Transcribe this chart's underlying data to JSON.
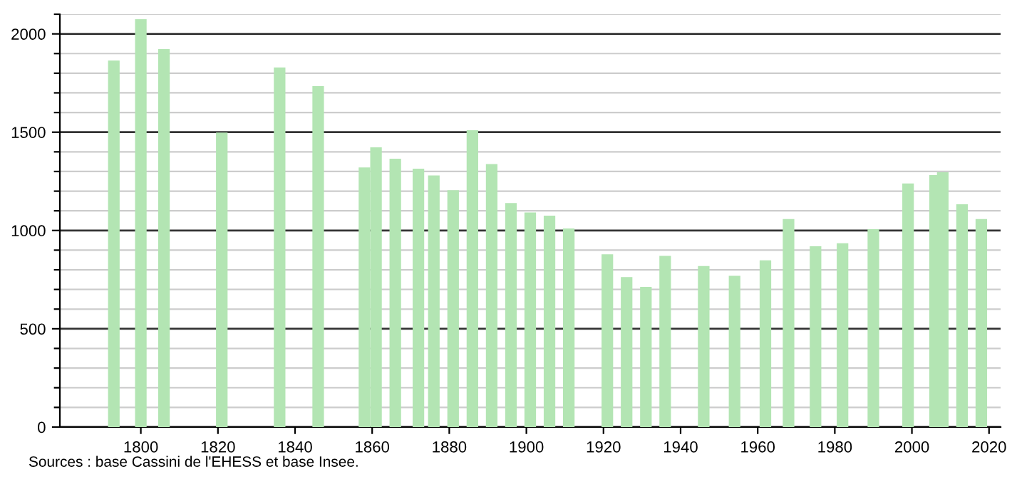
{
  "chart_data": {
    "type": "bar",
    "x": [
      1793,
      1800,
      1806,
      1821,
      1836,
      1846,
      1858,
      1861,
      1866,
      1872,
      1876,
      1881,
      1886,
      1891,
      1896,
      1901,
      1906,
      1911,
      1921,
      1926,
      1931,
      1936,
      1946,
      1954,
      1962,
      1968,
      1975,
      1982,
      1990,
      1999,
      2006,
      2008,
      2013,
      2018
    ],
    "values": [
      1865,
      2075,
      1923,
      1498,
      1829,
      1734,
      1321,
      1423,
      1365,
      1314,
      1280,
      1205,
      1510,
      1338,
      1140,
      1092,
      1075,
      1010,
      879,
      763,
      713,
      871,
      819,
      769,
      848,
      1058,
      920,
      935,
      1007,
      1239,
      1282,
      1296,
      1133,
      1058
    ],
    "color": "#b3e5b3",
    "xlim": [
      1779,
      2023
    ],
    "xticks": [
      1800,
      1820,
      1840,
      1860,
      1880,
      1900,
      1920,
      1940,
      1960,
      1980,
      2000,
      2020
    ],
    "ylim": [
      0,
      2100
    ],
    "yticks": [
      0,
      {
        "value": 100,
        "label": null
      },
      {
        "value": 200,
        "label": null
      },
      {
        "value": 300,
        "label": null
      },
      {
        "value": 400,
        "label": null
      },
      500,
      {
        "value": 600,
        "label": null
      },
      {
        "value": 700,
        "label": null
      },
      {
        "value": 800,
        "label": null
      },
      {
        "value": 900,
        "label": null
      },
      1000,
      {
        "value": 1100,
        "label": null
      },
      {
        "value": 1200,
        "label": null
      },
      {
        "value": 1300,
        "label": null
      },
      {
        "value": 1400,
        "label": null
      },
      1500,
      {
        "value": 1600,
        "label": null
      },
      {
        "value": 1700,
        "label": null
      },
      {
        "value": 1800,
        "label": null
      },
      {
        "value": 1900,
        "label": null
      },
      2000,
      {
        "value": 2100,
        "label": null
      }
    ],
    "grid": "y",
    "annotations": [
      "Sources : base Cassini de l'EHESS et base Insee."
    ]
  }
}
